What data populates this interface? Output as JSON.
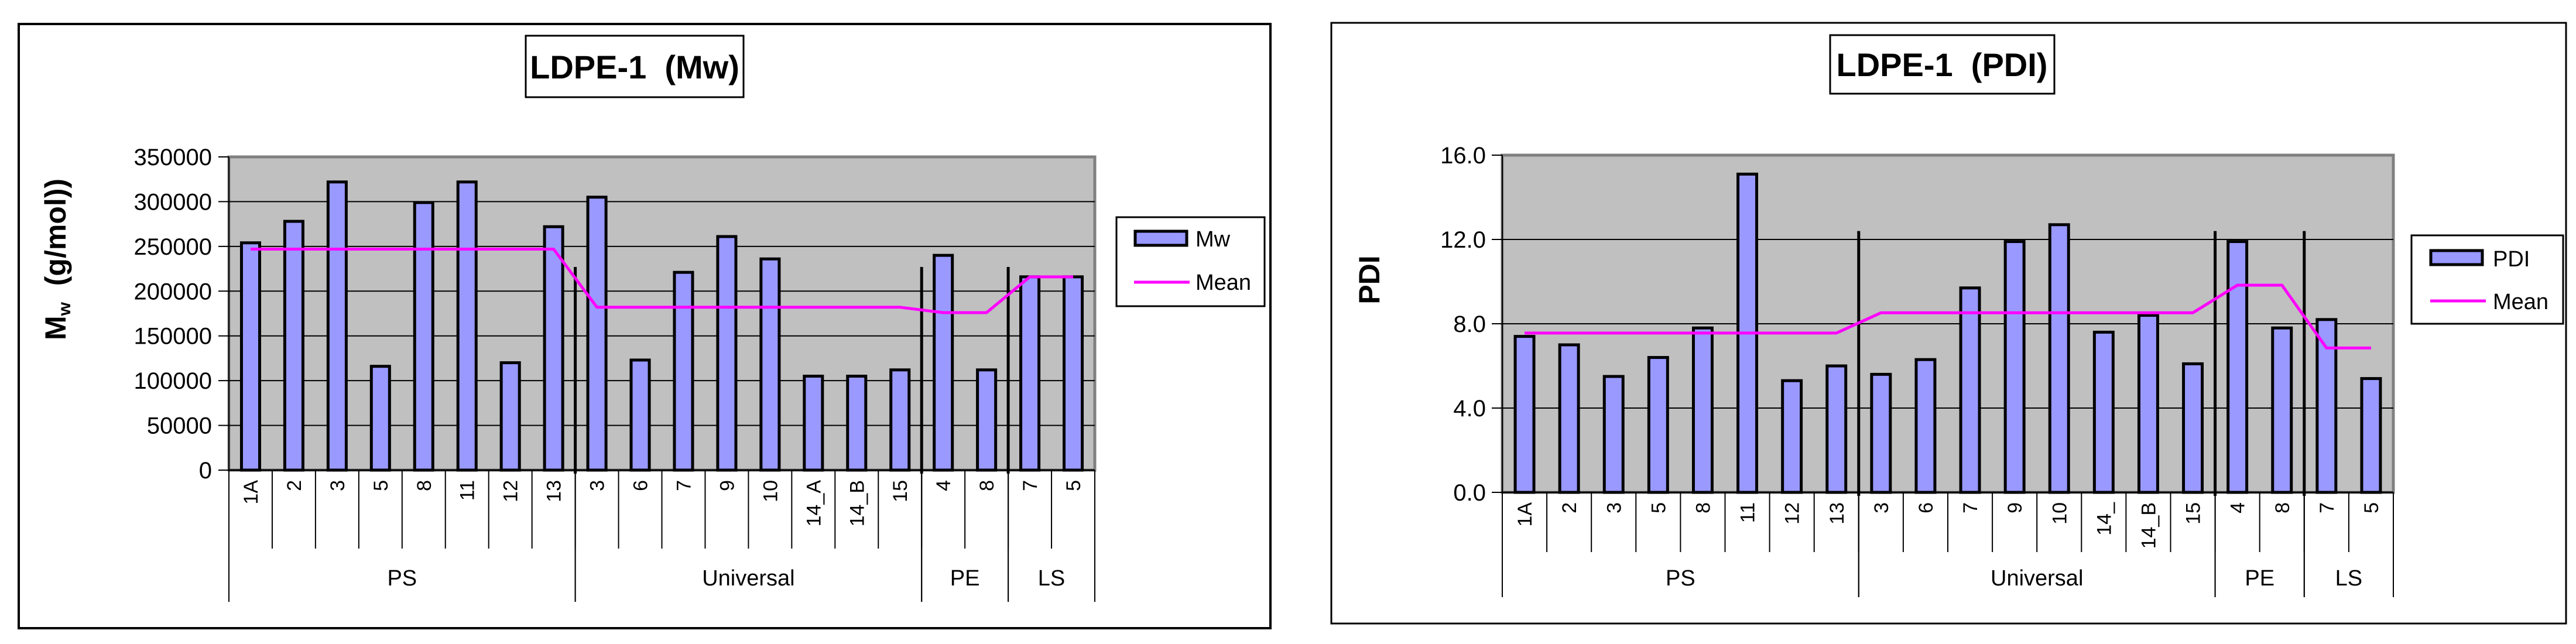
{
  "chart_data": [
    {
      "type": "bar",
      "title": "LDPE-1  (Mw)",
      "ylabel": "Mw (g/mol))",
      "ylabel_main": "M",
      "ylabel_sub": "w",
      "ylabel_rest": "  (g/mol))",
      "xlabel": "",
      "ylim": [
        0,
        350000
      ],
      "yticks": [
        0,
        50000,
        100000,
        150000,
        200000,
        250000,
        300000,
        350000
      ],
      "ytick_labels": [
        "0",
        "50000",
        "100000",
        "150000",
        "200000",
        "250000",
        "300000",
        "350000"
      ],
      "grid": true,
      "legend_position": "right",
      "categories": [
        "1A",
        "2",
        "3",
        "5",
        "8",
        "11",
        "12",
        "13",
        "3",
        "6",
        "7",
        "9",
        "10",
        "14_A",
        "14_B",
        "15",
        "4",
        "8",
        "7",
        "5"
      ],
      "groups": [
        {
          "label": "PS",
          "count": 8
        },
        {
          "label": "Universal",
          "count": 8
        },
        {
          "label": "PE",
          "count": 2
        },
        {
          "label": "LS",
          "count": 2
        }
      ],
      "series": [
        {
          "name": "Mw",
          "type": "bar",
          "color": "#9999ff",
          "values": [
            254000,
            278000,
            322000,
            116000,
            299000,
            322000,
            120000,
            272000,
            305000,
            123000,
            221000,
            261000,
            236000,
            105000,
            105000,
            112000,
            240000,
            112000,
            216000,
            216000
          ]
        },
        {
          "name": "Mean",
          "type": "line",
          "color": "#ff00ff",
          "values": [
            247000,
            247000,
            247000,
            247000,
            247000,
            247000,
            247000,
            247000,
            182000,
            182000,
            182000,
            182000,
            182000,
            182000,
            182000,
            182000,
            176000,
            176000,
            216000,
            216000
          ]
        }
      ],
      "group_separator_top": 227000
    },
    {
      "type": "bar",
      "title": "LDPE-1  (PDI)",
      "ylabel": "PDI",
      "xlabel": "",
      "ylim": [
        0,
        16
      ],
      "yticks": [
        0,
        4,
        8,
        12,
        16
      ],
      "ytick_labels": [
        "0.0",
        "4.0",
        "8.0",
        "12.0",
        "16.0"
      ],
      "grid": true,
      "legend_position": "right",
      "categories": [
        "1A",
        "2",
        "3",
        "5",
        "8",
        "11",
        "12",
        "13",
        "3",
        "6",
        "7",
        "9",
        "10",
        "14_",
        "14_B",
        "15",
        "4",
        "8",
        "7",
        "5"
      ],
      "groups": [
        {
          "label": "PS",
          "count": 8
        },
        {
          "label": "Universal",
          "count": 8
        },
        {
          "label": "PE",
          "count": 2
        },
        {
          "label": "LS",
          "count": 2
        }
      ],
      "series": [
        {
          "name": "PDI",
          "type": "bar",
          "color": "#9999ff",
          "values": [
            7.4,
            7.0,
            5.5,
            6.4,
            7.8,
            15.1,
            5.3,
            6.0,
            5.6,
            6.3,
            9.7,
            11.9,
            12.7,
            7.6,
            8.4,
            6.1,
            11.9,
            7.8,
            8.2,
            5.4
          ]
        },
        {
          "name": "Mean",
          "type": "line",
          "color": "#ff00ff",
          "values": [
            7.56,
            7.56,
            7.56,
            7.56,
            7.56,
            7.56,
            7.56,
            7.56,
            8.52,
            8.52,
            8.52,
            8.52,
            8.52,
            8.52,
            8.52,
            8.52,
            9.83,
            9.83,
            6.85,
            6.85
          ]
        }
      ],
      "group_separator_top": 12.4
    }
  ],
  "colors": {
    "plot_background": "#c0c0c0",
    "plot_border": "#808080",
    "bar_fill": "#9999ff",
    "bar_outline": "#000000",
    "mean_line": "#ff00ff"
  }
}
